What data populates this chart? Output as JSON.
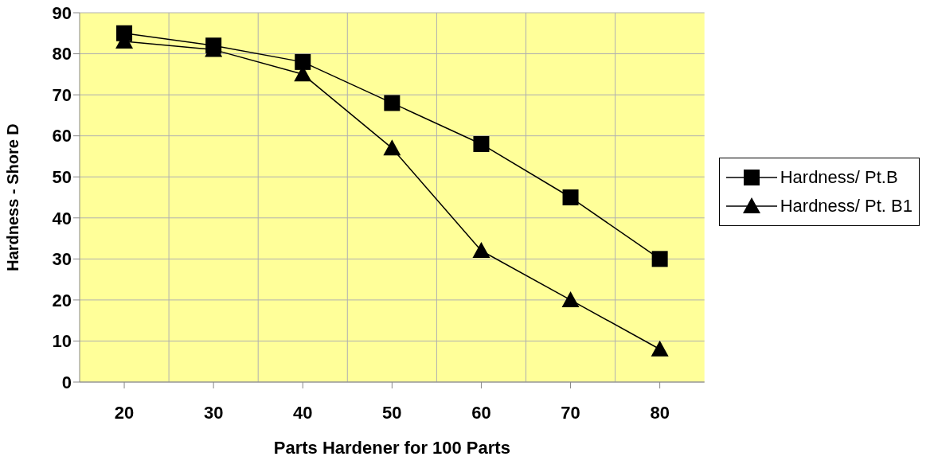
{
  "chart_data": {
    "type": "line",
    "xlabel": "Parts Hardener for 100 Parts",
    "ylabel": "Hardness - Shore D",
    "categories": [
      "20",
      "30",
      "40",
      "50",
      "60",
      "70",
      "80"
    ],
    "series": [
      {
        "name": "Hardness/ Pt.B",
        "color": "#000000",
        "marker": "square",
        "values": [
          85,
          82,
          78,
          68,
          58,
          45,
          30
        ]
      },
      {
        "name": "Hardness/ Pt. B1",
        "color": "#000000",
        "marker": "triangle",
        "values": [
          83,
          81,
          75,
          57,
          32,
          20,
          8
        ]
      }
    ],
    "ylim": [
      0,
      90
    ],
    "yticks": [
      0,
      10,
      20,
      30,
      40,
      50,
      60,
      70,
      80,
      90
    ],
    "grid": true,
    "legend": "right",
    "line_style": "solid"
  }
}
